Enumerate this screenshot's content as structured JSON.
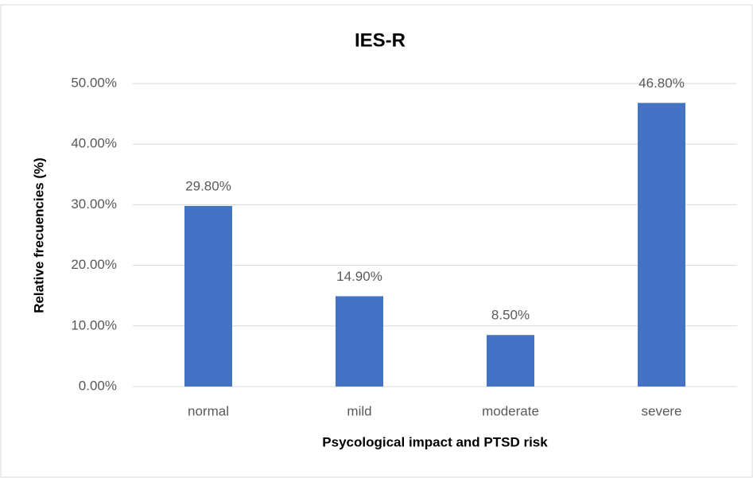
{
  "chart_data": {
    "type": "bar",
    "title": "IES-R",
    "x_label": "Psycological impact and PTSD risk",
    "y_label": "Relative frecuencies (%)",
    "categories": [
      "normal",
      "mild",
      "moderate",
      "severe"
    ],
    "values": [
      29.8,
      14.9,
      8.5,
      46.8
    ],
    "value_labels": [
      "29.80%",
      "14.90%",
      "8.50%",
      "46.80%"
    ],
    "color": "#4472c4",
    "ylim": [
      0,
      50
    ],
    "yticks": [
      {
        "value": 0,
        "label": "0.00%"
      },
      {
        "value": 10,
        "label": "10.00%"
      },
      {
        "value": 20,
        "label": "20.00%"
      },
      {
        "value": 30,
        "label": "30.00%"
      },
      {
        "value": 40,
        "label": "40.00%"
      },
      {
        "value": 50,
        "label": "50.00%"
      }
    ],
    "grid": true
  }
}
